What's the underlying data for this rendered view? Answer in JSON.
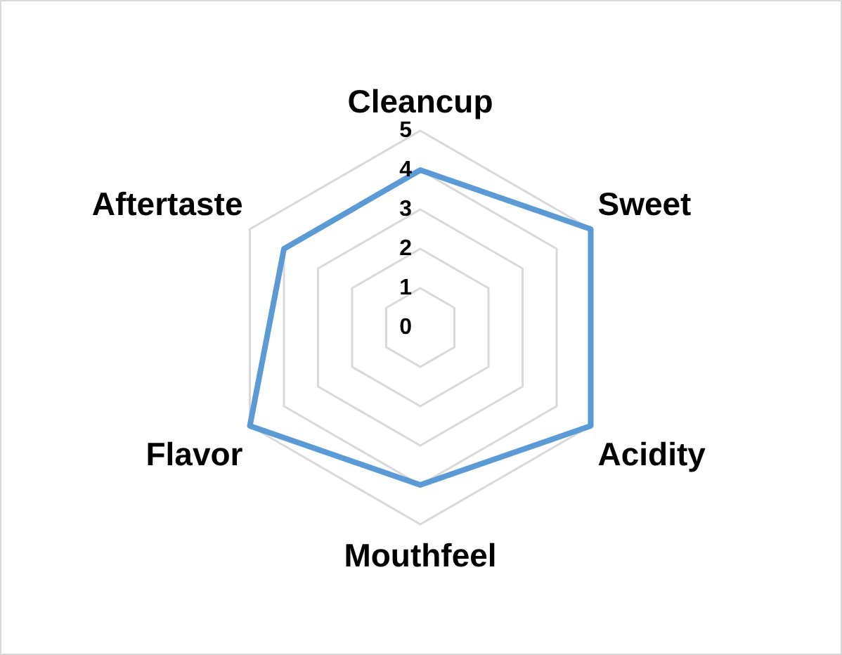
{
  "chart_data": {
    "type": "radar",
    "categories": [
      "Cleancup",
      "Sweet",
      "Acidity",
      "Mouthfeel",
      "Flavor",
      "Aftertaste"
    ],
    "series": [
      {
        "color": "#5b9bd5",
        "values": [
          4,
          5,
          5,
          4,
          5,
          4
        ]
      }
    ],
    "ylim": [
      0,
      5
    ],
    "yticks": [
      0,
      1,
      2,
      3,
      4,
      5
    ],
    "grid": true,
    "marker": "none"
  }
}
